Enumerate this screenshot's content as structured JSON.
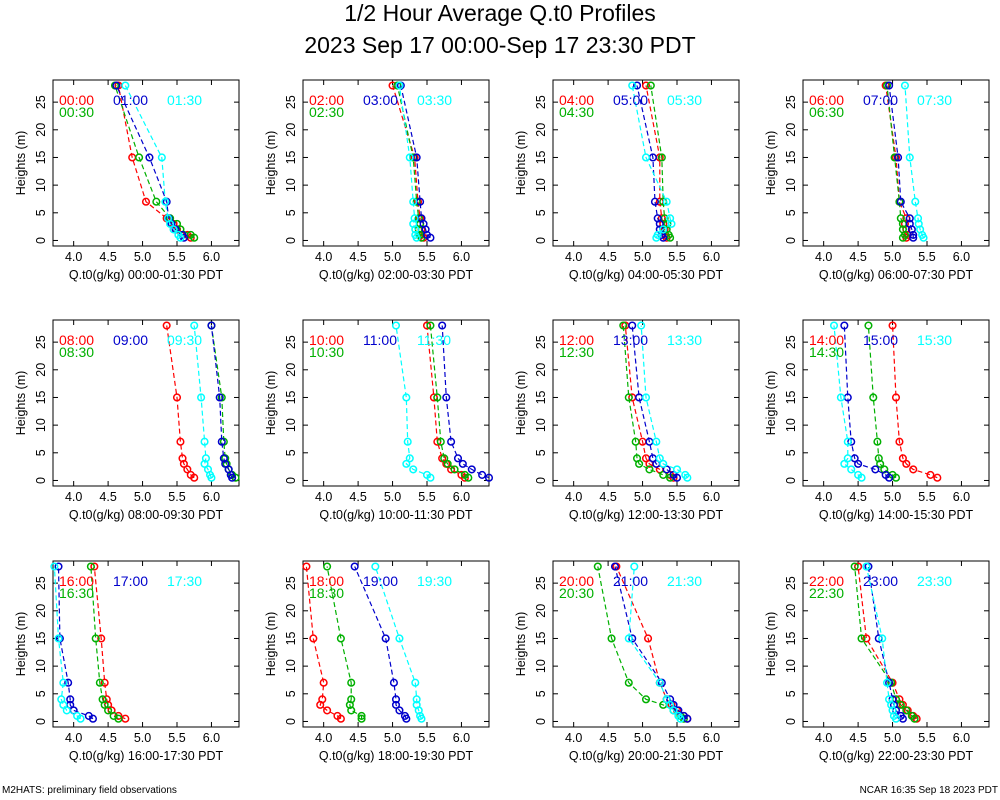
{
  "header": {
    "title": "1/2 Hour Average Q.t0 Profiles",
    "subtitle": "2023 Sep 17 00:00-Sep 17 23:30 PDT"
  },
  "footer": {
    "left": "M2HATS: preliminary field observations",
    "right": "NCAR 16:35 Sep 18 2023 PDT"
  },
  "colors": {
    "series0": "#ff0000",
    "series1": "#00b000",
    "series2": "#0000cc",
    "series3": "#00ffff",
    "axis": "#000000",
    "background": "#ffffff"
  },
  "chart_data": {
    "type": "scatter",
    "layout": "3x4 small multiples",
    "ylabel": "Heights (m)",
    "xlim": [
      3.7,
      6.4
    ],
    "ylim": [
      -1,
      29
    ],
    "xticks": [
      "4.0",
      "4.5",
      "5.0",
      "5.5",
      "6.0"
    ],
    "yticks": [
      "0",
      "5",
      "10",
      "15",
      "20",
      "25"
    ],
    "heights": [
      0.5,
      1,
      2,
      3,
      4,
      7,
      15,
      28
    ],
    "panels": [
      {
        "xlabel": "Q.t0(g/kg) 00:00-01:30 PDT",
        "series": [
          {
            "name": "00:00",
            "values": [
              5.7,
              5.65,
              5.5,
              5.45,
              5.35,
              5.05,
              4.85,
              4.65
            ]
          },
          {
            "name": "00:30",
            "values": [
              5.75,
              5.7,
              5.55,
              5.5,
              5.4,
              5.2,
              4.95,
              4.6
            ]
          },
          {
            "name": "01:00",
            "values": [
              5.6,
              5.58,
              5.48,
              5.42,
              5.38,
              5.35,
              5.1,
              4.62
            ]
          },
          {
            "name": "01:30",
            "values": [
              5.55,
              5.52,
              5.45,
              5.4,
              5.37,
              5.33,
              5.28,
              4.75
            ]
          }
        ]
      },
      {
        "xlabel": "Q.t0(g/kg) 02:00-03:30 PDT",
        "series": [
          {
            "name": "02:00",
            "values": [
              5.45,
              5.42,
              5.42,
              5.4,
              5.4,
              5.37,
              5.32,
              5.0
            ]
          },
          {
            "name": "02:30",
            "values": [
              5.42,
              5.4,
              5.38,
              5.4,
              5.38,
              5.35,
              5.3,
              5.07
            ]
          },
          {
            "name": "03:00",
            "values": [
              5.55,
              5.5,
              5.48,
              5.45,
              5.42,
              5.4,
              5.35,
              5.12
            ]
          },
          {
            "name": "03:30",
            "values": [
              5.35,
              5.33,
              5.33,
              5.3,
              5.32,
              5.3,
              5.25,
              5.1
            ]
          }
        ]
      },
      {
        "xlabel": "Q.t0(g/kg) 04:00-05:30 PDT",
        "series": [
          {
            "name": "04:00",
            "values": [
              5.35,
              5.33,
              5.32,
              5.3,
              5.28,
              5.25,
              5.25,
              5.05
            ]
          },
          {
            "name": "04:30",
            "values": [
              5.4,
              5.38,
              5.35,
              5.36,
              5.32,
              5.3,
              5.28,
              5.12
            ]
          },
          {
            "name": "05:00",
            "values": [
              5.3,
              5.28,
              5.25,
              5.25,
              5.22,
              5.18,
              5.15,
              4.92
            ]
          },
          {
            "name": "05:30",
            "values": [
              5.2,
              5.22,
              5.3,
              5.42,
              5.4,
              5.35,
              5.05,
              4.85
            ]
          }
        ]
      },
      {
        "xlabel": "Q.t0(g/kg) 06:00-07:30 PDT",
        "series": [
          {
            "name": "06:00",
            "values": [
              5.2,
              5.22,
              5.2,
              5.18,
              5.2,
              5.1,
              5.05,
              4.9
            ]
          },
          {
            "name": "06:30",
            "values": [
              5.15,
              5.18,
              5.15,
              5.15,
              5.12,
              5.1,
              5.03,
              4.92
            ]
          },
          {
            "name": "07:00",
            "values": [
              5.3,
              5.3,
              5.28,
              5.25,
              5.25,
              5.12,
              5.08,
              4.95
            ]
          },
          {
            "name": "07:30",
            "values": [
              5.45,
              5.43,
              5.4,
              5.38,
              5.37,
              5.33,
              5.25,
              5.18
            ]
          }
        ]
      },
      {
        "xlabel": "Q.t0(g/kg) 08:00-09:30 PDT",
        "series": [
          {
            "name": "08:00",
            "values": [
              5.75,
              5.7,
              5.65,
              5.6,
              5.58,
              5.55,
              5.5,
              5.35
            ]
          },
          {
            "name": "08:30",
            "values": [
              6.35,
              6.3,
              6.25,
              6.22,
              6.2,
              6.18,
              6.15,
              6.0
            ]
          },
          {
            "name": "09:00",
            "values": [
              6.3,
              6.28,
              6.25,
              6.2,
              6.18,
              6.15,
              6.12,
              6.0
            ]
          },
          {
            "name": "09:30",
            "values": [
              6.0,
              5.98,
              5.95,
              5.9,
              5.92,
              5.9,
              5.85,
              5.75
            ]
          }
        ]
      },
      {
        "xlabel": "Q.t0(g/kg) 10:00-11:30 PDT",
        "series": [
          {
            "name": "10:00",
            "values": [
              6.05,
              6.0,
              5.85,
              5.78,
              5.72,
              5.65,
              5.6,
              5.5
            ]
          },
          {
            "name": "10:30",
            "values": [
              6.1,
              6.05,
              5.9,
              5.8,
              5.75,
              5.7,
              5.65,
              5.55
            ]
          },
          {
            "name": "11:00",
            "values": [
              6.4,
              6.3,
              6.15,
              6.02,
              5.95,
              5.85,
              5.78,
              5.72
            ]
          },
          {
            "name": "11:30",
            "values": [
              5.55,
              5.5,
              5.3,
              5.2,
              5.25,
              5.22,
              5.2,
              5.05
            ]
          }
        ]
      },
      {
        "xlabel": "Q.t0(g/kg) 12:00-13:30 PDT",
        "series": [
          {
            "name": "12:00",
            "values": [
              5.45,
              5.4,
              5.25,
              5.1,
              5.05,
              5.0,
              4.85,
              4.75
            ]
          },
          {
            "name": "12:30",
            "values": [
              5.4,
              5.3,
              5.1,
              4.95,
              4.92,
              4.9,
              4.8,
              4.72
            ]
          },
          {
            "name": "13:00",
            "values": [
              5.5,
              5.45,
              5.35,
              5.2,
              5.15,
              5.1,
              4.95,
              4.85
            ]
          },
          {
            "name": "13:30",
            "values": [
              5.65,
              5.62,
              5.5,
              5.3,
              5.25,
              5.2,
              5.05,
              4.98
            ]
          }
        ]
      },
      {
        "xlabel": "Q.t0(g/kg) 14:00-15:30 PDT",
        "series": [
          {
            "name": "14:00",
            "values": [
              5.65,
              5.55,
              5.3,
              5.2,
              5.15,
              5.1,
              5.05,
              5.0
            ]
          },
          {
            "name": "14:30",
            "values": [
              5.05,
              5.0,
              4.88,
              4.82,
              4.8,
              4.78,
              4.72,
              4.65
            ]
          },
          {
            "name": "15:00",
            "values": [
              4.95,
              4.9,
              4.75,
              4.5,
              4.45,
              4.4,
              4.35,
              4.3
            ]
          },
          {
            "name": "15:30",
            "values": [
              4.55,
              4.5,
              4.4,
              4.3,
              4.35,
              4.35,
              4.25,
              4.15
            ]
          }
        ]
      },
      {
        "xlabel": "Q.t0(g/kg) 16:00-17:30 PDT",
        "series": [
          {
            "name": "16:00",
            "values": [
              4.75,
              4.65,
              4.55,
              4.5,
              4.48,
              4.45,
              4.4,
              4.3
            ]
          },
          {
            "name": "16:30",
            "values": [
              4.65,
              4.58,
              4.5,
              4.45,
              4.42,
              4.38,
              4.32,
              4.25
            ]
          },
          {
            "name": "17:00",
            "values": [
              4.28,
              4.22,
              4.0,
              3.95,
              3.95,
              3.92,
              3.8,
              3.78
            ]
          },
          {
            "name": "17:30",
            "values": [
              4.1,
              4.05,
              3.9,
              3.85,
              3.82,
              3.85,
              3.78,
              3.72
            ]
          }
        ]
      },
      {
        "xlabel": "Q.t0(g/kg) 18:00-19:30 PDT",
        "series": [
          {
            "name": "18:00",
            "values": [
              4.25,
              4.2,
              4.05,
              3.95,
              3.98,
              4.0,
              3.85,
              3.75
            ]
          },
          {
            "name": "18:30",
            "values": [
              4.55,
              4.55,
              4.4,
              4.38,
              4.4,
              4.4,
              4.25,
              4.05
            ]
          },
          {
            "name": "19:00",
            "values": [
              5.2,
              5.18,
              5.1,
              5.05,
              5.05,
              5.02,
              4.9,
              4.45
            ]
          },
          {
            "name": "19:30",
            "values": [
              5.42,
              5.4,
              5.38,
              5.35,
              5.35,
              5.33,
              5.1,
              4.75
            ]
          }
        ]
      },
      {
        "xlabel": "Q.t0(g/kg) 20:00-21:30 PDT",
        "series": [
          {
            "name": "20:00",
            "values": [
              5.65,
              5.6,
              5.5,
              5.42,
              5.35,
              5.25,
              5.08,
              4.62
            ]
          },
          {
            "name": "20:30",
            "values": [
              5.6,
              5.55,
              5.45,
              5.3,
              5.05,
              4.8,
              4.55,
              4.35
            ]
          },
          {
            "name": "21:00",
            "values": [
              5.65,
              5.6,
              5.52,
              5.45,
              5.4,
              5.28,
              4.85,
              4.6
            ]
          },
          {
            "name": "21:30",
            "values": [
              5.55,
              5.52,
              5.45,
              5.4,
              5.35,
              5.25,
              4.8,
              4.88
            ]
          }
        ]
      },
      {
        "xlabel": "Q.t0(g/kg) 22:00-23:30 PDT",
        "series": [
          {
            "name": "22:00",
            "values": [
              5.35,
              5.3,
              5.22,
              5.15,
              5.1,
              5.0,
              4.62,
              4.5
            ]
          },
          {
            "name": "22:30",
            "values": [
              5.32,
              5.28,
              5.2,
              5.12,
              5.05,
              4.98,
              4.55,
              4.45
            ]
          },
          {
            "name": "23:00",
            "values": [
              5.15,
              5.12,
              5.05,
              5.02,
              5.0,
              4.95,
              4.8,
              4.65
            ]
          },
          {
            "name": "23:30",
            "values": [
              5.05,
              5.02,
              5.0,
              4.98,
              4.95,
              4.92,
              4.85,
              4.62
            ]
          }
        ]
      }
    ]
  }
}
